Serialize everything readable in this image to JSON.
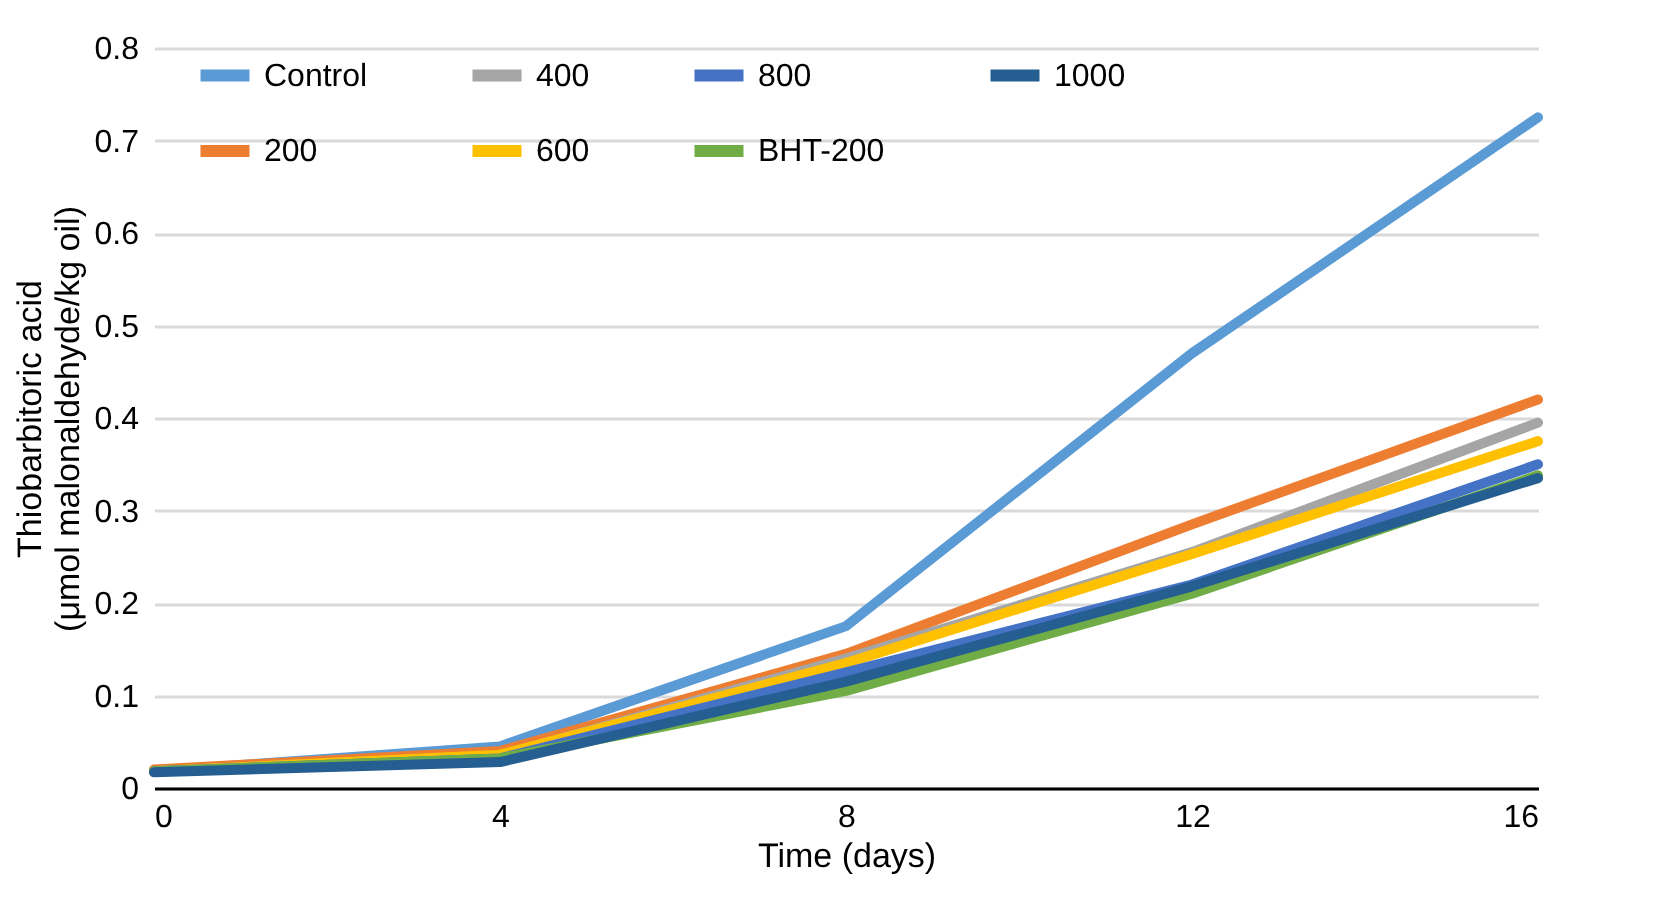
{
  "chart_data": {
    "type": "line",
    "xlabel": "Time (days)",
    "ylabel": "Thiobarbitoric acid\n(μmol malonaldehyde/kg oil)",
    "x": [
      0,
      4,
      8,
      12,
      16
    ],
    "series": [
      {
        "name": "Control",
        "color": "#5b9bd5",
        "values": [
          0.018,
          0.045,
          0.175,
          0.47,
          0.725
        ]
      },
      {
        "name": "200",
        "color": "#ed7d31",
        "values": [
          0.02,
          0.04,
          0.145,
          0.285,
          0.42
        ]
      },
      {
        "name": "400",
        "color": "#a5a5a5",
        "values": [
          0.018,
          0.035,
          0.14,
          0.255,
          0.395
        ]
      },
      {
        "name": "600",
        "color": "#ffc000",
        "values": [
          0.018,
          0.036,
          0.135,
          0.253,
          0.375
        ]
      },
      {
        "name": "800",
        "color": "#4472c4",
        "values": [
          0.018,
          0.032,
          0.125,
          0.22,
          0.35
        ]
      },
      {
        "name": "BHT-200",
        "color": "#70ad47",
        "values": [
          0.018,
          0.032,
          0.105,
          0.21,
          0.338
        ]
      },
      {
        "name": "1000",
        "color": "#255e91",
        "values": [
          0.017,
          0.028,
          0.115,
          0.218,
          0.335
        ]
      }
    ],
    "xlim": [
      0,
      16
    ],
    "xticks": [
      0,
      4,
      8,
      12,
      16
    ],
    "ylim": [
      0,
      0.8
    ],
    "yticks": [
      {
        "value": 0,
        "label": "0"
      },
      0.1,
      0.2,
      0.3,
      0.4,
      0.5,
      0.6,
      0.7,
      0.8
    ],
    "grid": "y",
    "legend": "top",
    "marker": "none",
    "line_style": "solid"
  }
}
